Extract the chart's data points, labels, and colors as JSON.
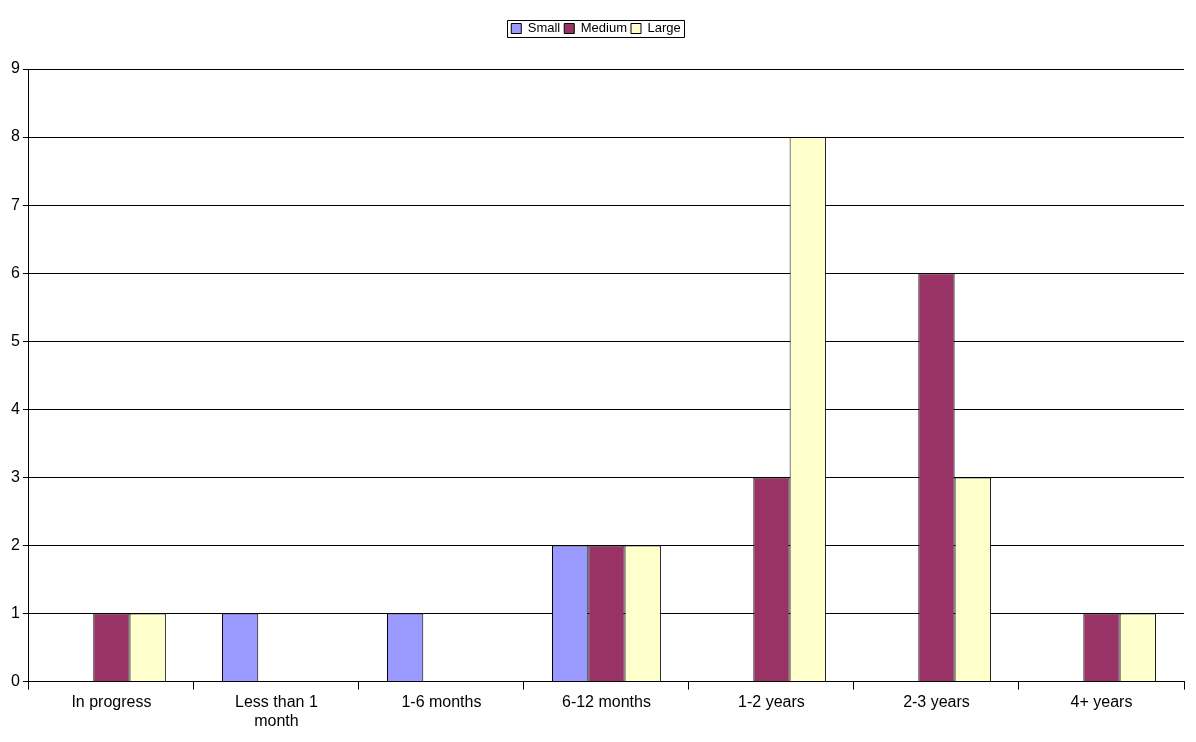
{
  "chart_data": {
    "type": "bar",
    "categories": [
      "In progress",
      "Less than 1 month",
      "1-6 months",
      "6-12 months",
      "1-2 years",
      "2-3 years",
      "4+ years"
    ],
    "series": [
      {
        "name": "Small",
        "color": "#9999ff",
        "values": [
          0,
          1,
          1,
          2,
          0,
          0,
          0
        ]
      },
      {
        "name": "Medium",
        "color": "#993366",
        "values": [
          1,
          0,
          0,
          2,
          3,
          6,
          1
        ]
      },
      {
        "name": "Large",
        "color": "#ffffcc",
        "values": [
          1,
          0,
          0,
          2,
          8,
          3,
          1
        ]
      }
    ],
    "ylim": [
      0,
      9
    ],
    "yticks": [
      0,
      1,
      2,
      3,
      4,
      5,
      6,
      7,
      8,
      9
    ],
    "grid": "y",
    "legend": "top"
  }
}
